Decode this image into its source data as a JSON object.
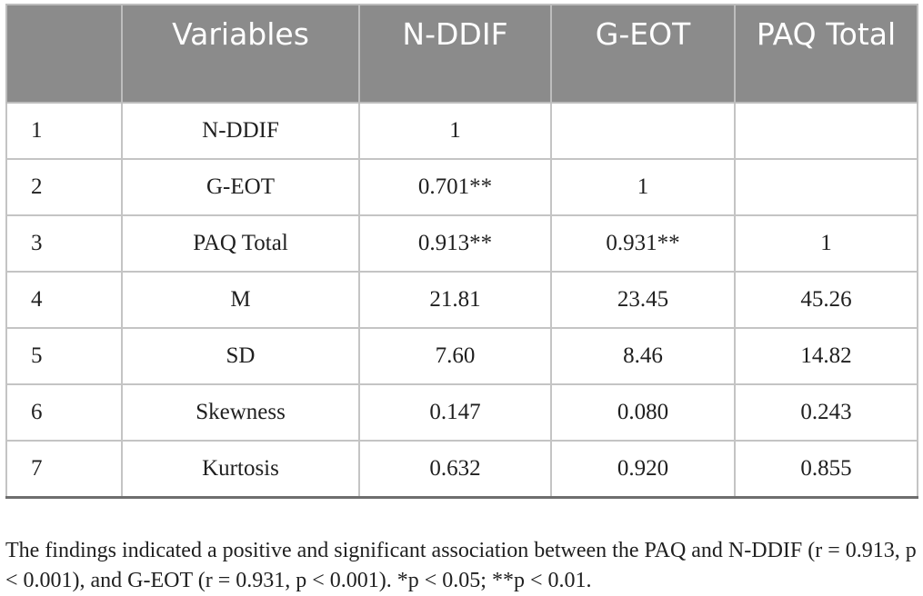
{
  "table": {
    "headers": [
      "",
      "Variables",
      "N-DDIF",
      "G-EOT",
      "PAQ Total"
    ],
    "rows": [
      [
        "1",
        "N-DDIF",
        "1",
        "",
        ""
      ],
      [
        "2",
        "G-EOT",
        "0.701**",
        "1",
        ""
      ],
      [
        "3",
        "PAQ Total",
        "0.913**",
        "0.931**",
        "1"
      ],
      [
        "4",
        "M",
        "21.81",
        "23.45",
        "45.26"
      ],
      [
        "5",
        "SD",
        "7.60",
        "8.46",
        "14.82"
      ],
      [
        "6",
        "Skewness",
        "0.147",
        "0.080",
        "0.243"
      ],
      [
        "7",
        "Kurtosis",
        "0.632",
        "0.920",
        "0.855"
      ]
    ]
  },
  "note": "The findings indicated a positive and significant association between the PAQ and N-DDIF (r = 0.913, p < 0.001), and G-EOT (r = 0.931, p < 0.001). *p < 0.05; **p < 0.01.",
  "colors": {
    "header_bg": "#8b8b8b",
    "header_text": "#ffffff",
    "grid": "#c4c4c4"
  }
}
